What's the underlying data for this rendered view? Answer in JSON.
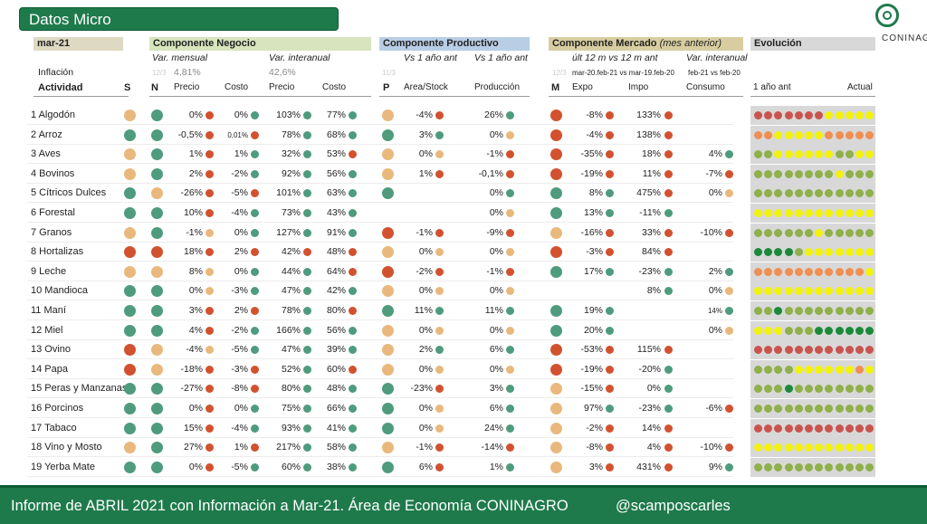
{
  "title": "Datos Micro",
  "logo": {
    "name": "CONINAGRO"
  },
  "period": "mar-21",
  "sections": {
    "negocio": "Componente Negocio",
    "productivo": "Componente Productivo",
    "mercado": "Componente Mercado",
    "mercado_note": "(mes anterior)",
    "evolucion": "Evolución"
  },
  "subheaders": {
    "var_mensual": "Var. mensual",
    "var_interanual": "Var. interanual",
    "vs1a_stock": "Vs 1 año ant",
    "vs1a_prod": "Vs 1 año ant",
    "ult12": "últ 12 m vs 12 m ant",
    "var_inter_merc": "Var. interanual",
    "expo_period": "mar-20.feb-21 vs mar-19.feb-20",
    "consumo_period": "feb-21 vs feb-20",
    "ghost_1": "12/3",
    "ghost_2": "11/3",
    "ghost_3": "12/3"
  },
  "inflacion": {
    "label": "Inflación",
    "mensual": "4,81%",
    "interanual": "42,6%"
  },
  "columns": {
    "actividad": "Actividad",
    "s": "S",
    "n": "N",
    "precio": "Precio",
    "costo": "Costo",
    "precio2": "Precio",
    "costo2": "Costo",
    "p": "P",
    "area": "Area/Stock",
    "produccion": "Producción",
    "m": "M",
    "expo": "Expo",
    "impo": "Impo",
    "consumo": "Consumo",
    "anio_ant": "1 año ant",
    "actual": "Actual"
  },
  "colors": {
    "green": "#4e9b7e",
    "red": "#d2512f",
    "orange": "#e9b87c",
    "yellow": "#f2f20a",
    "olive": "#8fb04a",
    "lightred": "#c9544e",
    "lightorange": "#f08f52",
    "dkgreen": "#1a8a3a"
  },
  "rows": [
    {
      "name": "1 Algodón",
      "s": "o",
      "n": "g",
      "precio": "0%",
      "pc": "r",
      "costo": "0%",
      "cc": "g",
      "precio2": "103%",
      "p2c": "g",
      "costo2": "77%",
      "c2c": "g",
      "p": "o",
      "area": "-4%",
      "ac": "r",
      "prod": "26%",
      "prc": "g",
      "m": "r",
      "expo": "-8%",
      "ec": "r",
      "impo": "133%",
      "ic": "r",
      "consumo": "",
      "coc": "",
      "evo": "rrrrrrryyyyy"
    },
    {
      "name": "2 Arroz",
      "s": "g",
      "n": "g",
      "precio": "-0,5%",
      "pc": "r",
      "costo": "0,01%",
      "cc": "r",
      "precio2": "78%",
      "p2c": "g",
      "costo2": "68%",
      "c2c": "g",
      "p": "g",
      "area": "3%",
      "ac": "g",
      "prod": "0%",
      "prc": "o",
      "m": "r",
      "expo": "-4%",
      "ec": "r",
      "impo": "138%",
      "ic": "r",
      "consumo": "",
      "coc": "",
      "evo": "ooyyyyyooooo"
    },
    {
      "name": "3 Aves",
      "s": "o",
      "n": "g",
      "precio": "1%",
      "pc": "r",
      "costo": "1%",
      "cc": "g",
      "precio2": "32%",
      "p2c": "g",
      "costo2": "53%",
      "c2c": "r",
      "p": "o",
      "area": "0%",
      "ac": "o",
      "prod": "-1%",
      "prc": "r",
      "m": "r",
      "expo": "-35%",
      "ec": "r",
      "impo": "18%",
      "ic": "r",
      "consumo": "4%",
      "coc": "g",
      "evo": "vvyyyyyyvvyy"
    },
    {
      "name": "4 Bovinos",
      "s": "o",
      "n": "g",
      "precio": "2%",
      "pc": "r",
      "costo": "-2%",
      "cc": "g",
      "precio2": "92%",
      "p2c": "g",
      "costo2": "56%",
      "c2c": "g",
      "p": "o",
      "area": "1%",
      "ac": "r",
      "prod": "-0,1%",
      "prc": "r",
      "m": "r",
      "expo": "-19%",
      "ec": "r",
      "impo": "11%",
      "ic": "r",
      "consumo": "-7%",
      "coc": "r",
      "evo": "vvvvvvvvyvvv"
    },
    {
      "name": "5 Cítricos Dulces",
      "s": "g",
      "n": "o",
      "precio": "-26%",
      "pc": "r",
      "costo": "-5%",
      "cc": "r",
      "precio2": "101%",
      "p2c": "g",
      "costo2": "63%",
      "c2c": "g",
      "p": "g",
      "area": "",
      "ac": "",
      "prod": "0%",
      "prc": "g",
      "m": "g",
      "expo": "8%",
      "ec": "g",
      "impo": "475%",
      "ic": "r",
      "consumo": "0%",
      "coc": "o",
      "evo": "vvvvvvvvvvvv"
    },
    {
      "name": "6 Forestal",
      "s": "g",
      "n": "g",
      "precio": "10%",
      "pc": "r",
      "costo": "-4%",
      "cc": "g",
      "precio2": "73%",
      "p2c": "g",
      "costo2": "43%",
      "c2c": "g",
      "p": "",
      "area": "",
      "ac": "",
      "prod": "0%",
      "prc": "o",
      "m": "g",
      "expo": "13%",
      "ec": "g",
      "impo": "-11%",
      "ic": "g",
      "consumo": "",
      "coc": "",
      "evo": "yyyyyyyyyyyy"
    },
    {
      "name": "7 Granos",
      "s": "o",
      "n": "g",
      "precio": "-1%",
      "pc": "o",
      "costo": "0%",
      "cc": "g",
      "precio2": "127%",
      "p2c": "g",
      "costo2": "91%",
      "c2c": "g",
      "p": "r",
      "area": "-1%",
      "ac": "r",
      "prod": "-9%",
      "prc": "r",
      "m": "o",
      "expo": "-16%",
      "ec": "r",
      "impo": "33%",
      "ic": "r",
      "consumo": "-10%",
      "coc": "r",
      "evo": "vvvvvvyvvvvv"
    },
    {
      "name": "8 Hortalizas",
      "s": "r",
      "n": "r",
      "precio": "18%",
      "pc": "r",
      "costo": "2%",
      "cc": "r",
      "precio2": "42%",
      "p2c": "r",
      "costo2": "48%",
      "c2c": "r",
      "p": "o",
      "area": "0%",
      "ac": "o",
      "prod": "0%",
      "prc": "o",
      "m": "r",
      "expo": "-3%",
      "ec": "r",
      "impo": "84%",
      "ic": "r",
      "consumo": "",
      "coc": "",
      "evo": "ddddvyyyyyyy"
    },
    {
      "name": "9 Leche",
      "s": "o",
      "n": "o",
      "precio": "8%",
      "pc": "o",
      "costo": "0%",
      "cc": "g",
      "precio2": "44%",
      "p2c": "g",
      "costo2": "64%",
      "c2c": "r",
      "p": "r",
      "area": "-2%",
      "ac": "r",
      "prod": "-1%",
      "prc": "r",
      "m": "g",
      "expo": "17%",
      "ec": "g",
      "impo": "-23%",
      "ic": "g",
      "consumo": "2%",
      "coc": "g",
      "evo": "lllllllllllY"
    },
    {
      "name": "10 Mandioca",
      "s": "g",
      "n": "g",
      "precio": "0%",
      "pc": "o",
      "costo": "-3%",
      "cc": "g",
      "precio2": "47%",
      "p2c": "g",
      "costo2": "42%",
      "c2c": "g",
      "p": "o",
      "area": "0%",
      "ac": "o",
      "prod": "0%",
      "prc": "o",
      "m": "",
      "expo": "",
      "ec": "",
      "impo": "8%",
      "ic": "g",
      "consumo": "0%",
      "coc": "o",
      "evo": "yyyyyyyyyyyy"
    },
    {
      "name": "11 Maní",
      "s": "g",
      "n": "g",
      "precio": "3%",
      "pc": "r",
      "costo": "2%",
      "cc": "r",
      "precio2": "78%",
      "p2c": "g",
      "costo2": "80%",
      "c2c": "r",
      "p": "g",
      "area": "11%",
      "ac": "g",
      "prod": "11%",
      "prc": "g",
      "m": "g",
      "expo": "19%",
      "ec": "g",
      "impo": "",
      "ic": "",
      "consumo": "14%",
      "coc": "g",
      "evo": "vvdvvvvvvvvv"
    },
    {
      "name": "12 Miel",
      "s": "g",
      "n": "g",
      "precio": "4%",
      "pc": "r",
      "costo": "-2%",
      "cc": "g",
      "precio2": "166%",
      "p2c": "g",
      "costo2": "56%",
      "c2c": "g",
      "p": "o",
      "area": "0%",
      "ac": "o",
      "prod": "0%",
      "prc": "o",
      "m": "g",
      "expo": "20%",
      "ec": "g",
      "impo": "",
      "ic": "",
      "consumo": "0%",
      "coc": "o",
      "evo": "yyyvvvdddddd"
    },
    {
      "name": "13 Ovino",
      "s": "r",
      "n": "o",
      "precio": "-4%",
      "pc": "o",
      "costo": "-5%",
      "cc": "g",
      "precio2": "47%",
      "p2c": "g",
      "costo2": "39%",
      "c2c": "g",
      "p": "o",
      "area": "2%",
      "ac": "g",
      "prod": "6%",
      "prc": "g",
      "m": "r",
      "expo": "-53%",
      "ec": "r",
      "impo": "115%",
      "ic": "r",
      "consumo": "",
      "coc": "",
      "evo": "rrrrrrrrrrrr"
    },
    {
      "name": "14 Papa",
      "s": "r",
      "n": "o",
      "precio": "-18%",
      "pc": "r",
      "costo": "-3%",
      "cc": "r",
      "precio2": "52%",
      "p2c": "g",
      "costo2": "60%",
      "c2c": "r",
      "p": "o",
      "area": "0%",
      "ac": "o",
      "prod": "0%",
      "prc": "o",
      "m": "r",
      "expo": "-19%",
      "ec": "r",
      "impo": "-20%",
      "ic": "g",
      "consumo": "",
      "coc": "",
      "evo": "vvvvyyyyyyoy"
    },
    {
      "name": "15 Peras y Manzanas",
      "s": "g",
      "n": "g",
      "precio": "-27%",
      "pc": "r",
      "costo": "-8%",
      "cc": "r",
      "precio2": "80%",
      "p2c": "g",
      "costo2": "48%",
      "c2c": "g",
      "p": "g",
      "area": "-23%",
      "ac": "r",
      "prod": "3%",
      "prc": "g",
      "m": "o",
      "expo": "-15%",
      "ec": "r",
      "impo": "0%",
      "ic": "g",
      "consumo": "",
      "coc": "",
      "evo": "vvvdvvvvvvvv"
    },
    {
      "name": "16 Porcinos",
      "s": "g",
      "n": "g",
      "precio": "0%",
      "pc": "r",
      "costo": "0%",
      "cc": "g",
      "precio2": "75%",
      "p2c": "g",
      "costo2": "66%",
      "c2c": "g",
      "p": "g",
      "area": "0%",
      "ac": "o",
      "prod": "6%",
      "prc": "g",
      "m": "o",
      "expo": "97%",
      "ec": "g",
      "impo": "-23%",
      "ic": "g",
      "consumo": "-6%",
      "coc": "r",
      "evo": "vvvvvvvvvvvv"
    },
    {
      "name": "17 Tabaco",
      "s": "g",
      "n": "g",
      "precio": "15%",
      "pc": "r",
      "costo": "-4%",
      "cc": "g",
      "precio2": "93%",
      "p2c": "g",
      "costo2": "41%",
      "c2c": "g",
      "p": "g",
      "area": "0%",
      "ac": "o",
      "prod": "24%",
      "prc": "g",
      "m": "o",
      "expo": "-2%",
      "ec": "r",
      "impo": "14%",
      "ic": "r",
      "consumo": "",
      "coc": "",
      "evo": "rrrrrrrrrrrr"
    },
    {
      "name": "18 Vino y Mosto",
      "s": "o",
      "n": "g",
      "precio": "27%",
      "pc": "r",
      "costo": "1%",
      "cc": "r",
      "precio2": "217%",
      "p2c": "g",
      "costo2": "58%",
      "c2c": "g",
      "p": "o",
      "area": "-1%",
      "ac": "r",
      "prod": "-14%",
      "prc": "r",
      "m": "o",
      "expo": "-8%",
      "ec": "r",
      "impo": "4%",
      "ic": "r",
      "consumo": "-10%",
      "coc": "r",
      "evo": "yyyyyyyyyyyy"
    },
    {
      "name": "19 Yerba Mate",
      "s": "g",
      "n": "g",
      "precio": "0%",
      "pc": "r",
      "costo": "-5%",
      "cc": "g",
      "precio2": "60%",
      "p2c": "g",
      "costo2": "38%",
      "c2c": "g",
      "p": "g",
      "area": "6%",
      "ac": "r",
      "prod": "1%",
      "prc": "g",
      "m": "o",
      "expo": "3%",
      "ec": "r",
      "impo": "431%",
      "ic": "r",
      "consumo": "9%",
      "coc": "g",
      "evo": "vvvvvvvvvvvv"
    }
  ],
  "footer": {
    "text": "Informe de ABRIL 2021 con Información a Mar-21. Área de Economía CONINAGRO",
    "handle": "@scamposcarles"
  }
}
